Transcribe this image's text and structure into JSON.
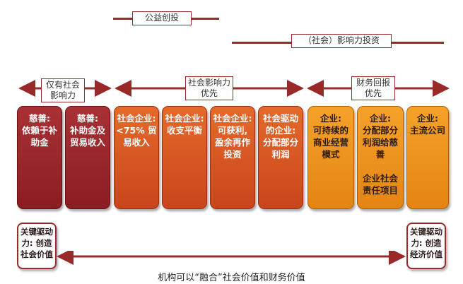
{
  "top_bar": {
    "label": "公益创投",
    "color": "#9a2a2a"
  },
  "second_bar": {
    "label": "（社会）影响力投资",
    "color": "#9a2a2a"
  },
  "categories": [
    {
      "label": "仅有社会\n影响力"
    },
    {
      "label": "社会影响力\n优先"
    },
    {
      "label": "财务回报\n优先"
    }
  ],
  "columns": [
    {
      "text": "慈善:\n依赖于补\n助金",
      "group": "charity"
    },
    {
      "text": "慈善:\n补助金及\n贸易收入",
      "group": "charity"
    },
    {
      "text": "社会企业:\n<75% 贸\n易收入",
      "group": "social"
    },
    {
      "text": "社会企业:\n收支平衡",
      "group": "social"
    },
    {
      "text": "社会企业:\n可获利,\n盈余再作\n投资",
      "group": "social"
    },
    {
      "text": "社会驱动\n的企业:\n分配部分\n利润",
      "group": "social"
    },
    {
      "text": "企业:\n可持续的\n商业经营\n模式",
      "group": "business"
    },
    {
      "text": "企业:\n分配部分\n利润给慈\n善\n\n企业社会\n责任项目",
      "group": "business"
    },
    {
      "text": "企业:\n主流公司",
      "group": "business"
    }
  ],
  "left_driver": "关键驱动\n力: 创造\n社会价值",
  "right_driver": "关键驱动\n力: 创造\n经济价值",
  "bottom_caption": "机构可以“融合”社会价值和财务价值",
  "colors": {
    "charity": "#8f2127",
    "social": "#d4521f",
    "business": "#ee9220",
    "line": "#9a2a2a"
  }
}
